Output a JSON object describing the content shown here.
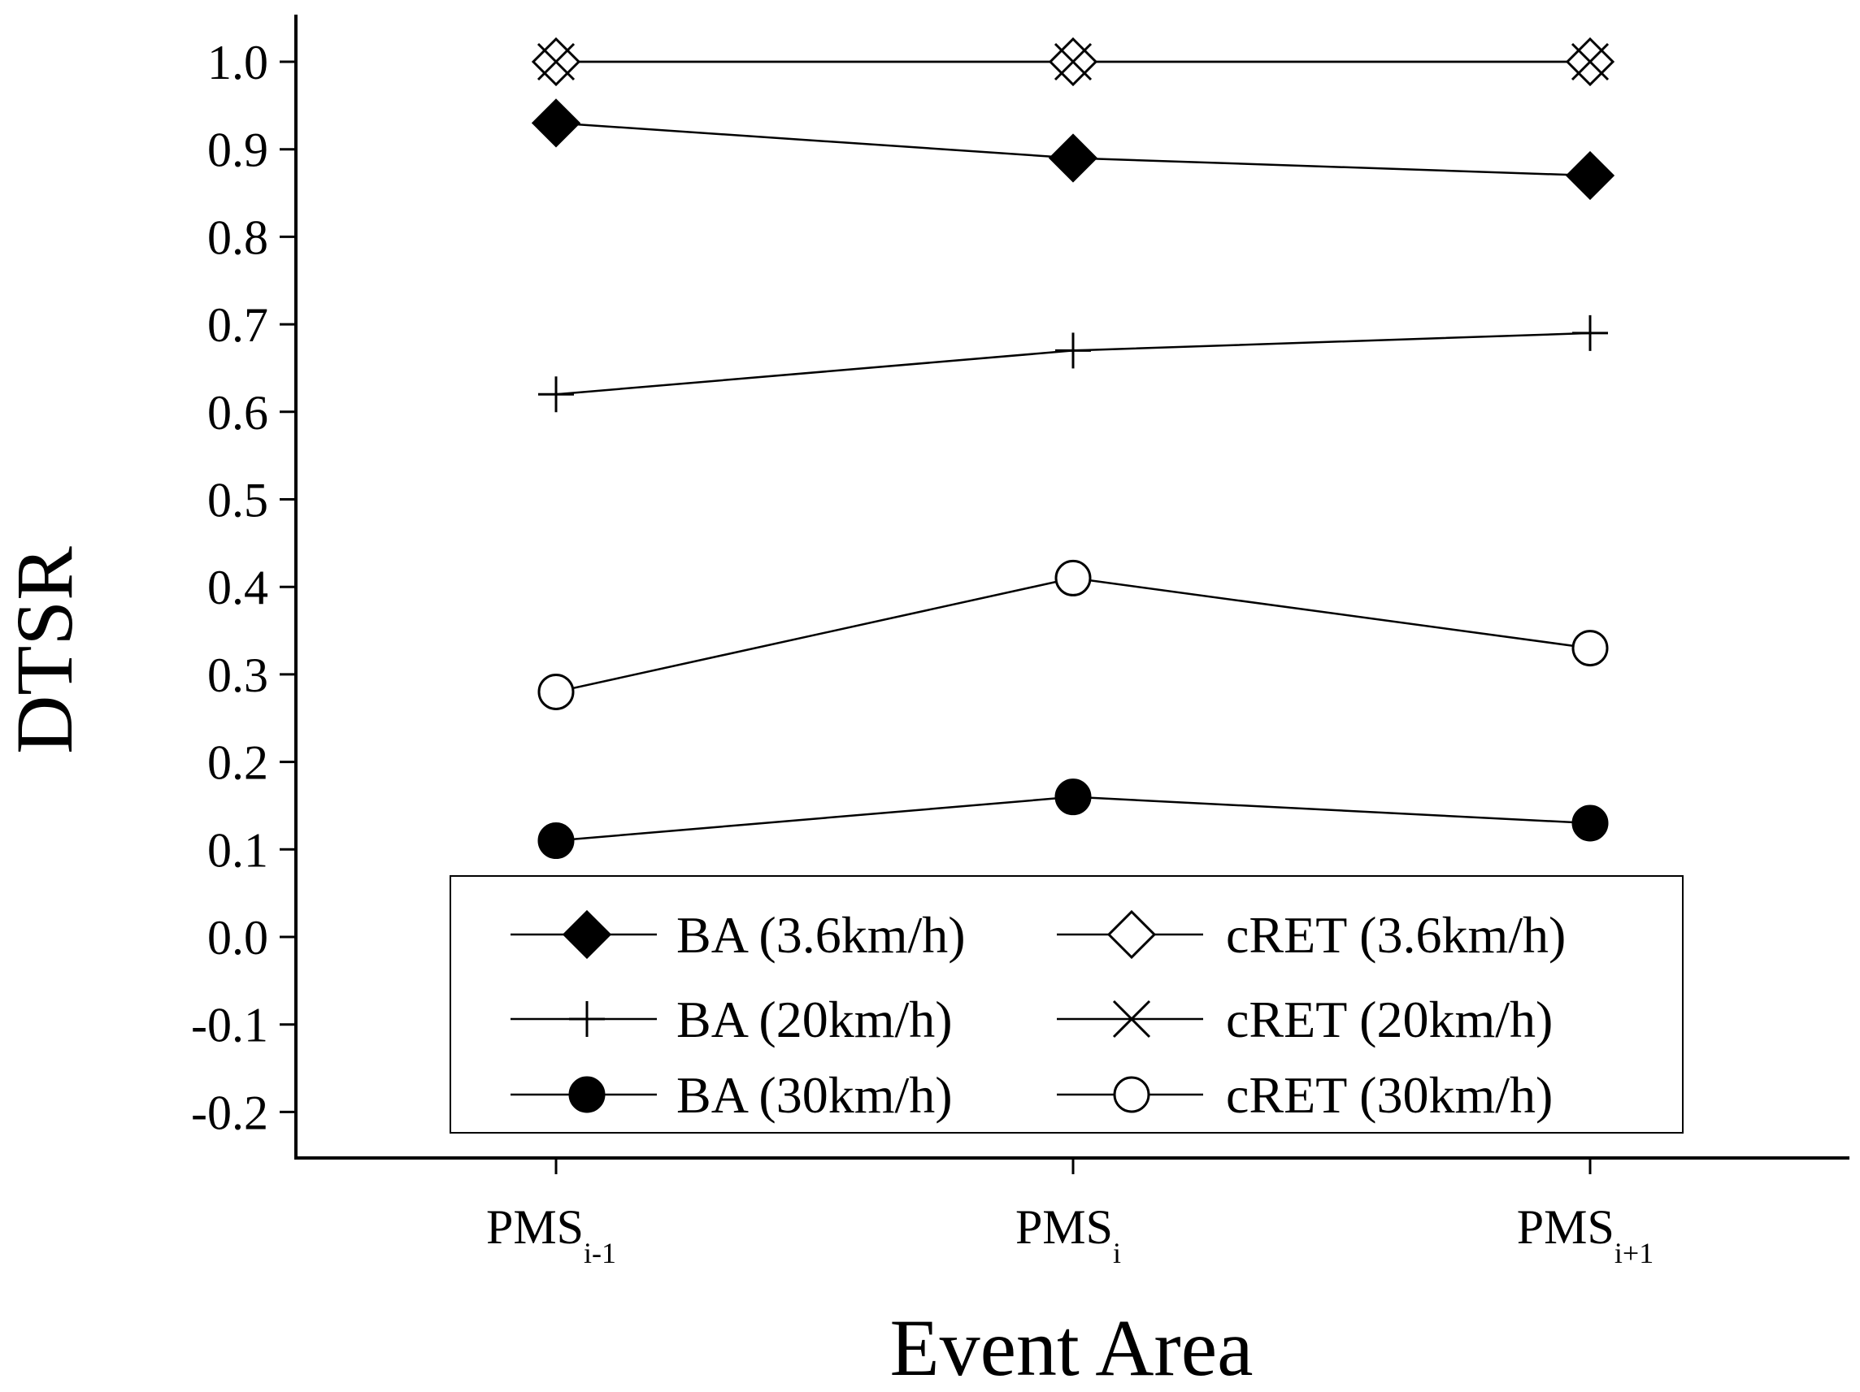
{
  "chart_data": {
    "type": "line",
    "title": "",
    "xlabel": "Event Area",
    "ylabel": "DTSR",
    "ylim": [
      -0.25,
      1.05
    ],
    "yticks": [
      "-0.2",
      "-0.1",
      "0.0",
      "0.1",
      "0.2",
      "0.3",
      "0.4",
      "0.5",
      "0.6",
      "0.7",
      "0.8",
      "0.9",
      "1.0"
    ],
    "categories": [
      {
        "main": "PMS",
        "sub": "i-1"
      },
      {
        "main": "PMS",
        "sub": "i"
      },
      {
        "main": "PMS",
        "sub": "i+1"
      }
    ],
    "legend_position": "bottom-inside",
    "series": [
      {
        "name": "BA (3.6km/h)",
        "marker": "diamond-filled",
        "values": [
          0.93,
          0.89,
          0.87
        ]
      },
      {
        "name": "cRET (3.6km/h)",
        "marker": "diamond-open",
        "values": [
          1.0,
          1.0,
          1.0
        ]
      },
      {
        "name": "BA (20km/h)",
        "marker": "plus",
        "values": [
          0.62,
          0.67,
          0.69
        ]
      },
      {
        "name": "cRET (20km/h)",
        "marker": "cross",
        "values": [
          1.0,
          1.0,
          1.0
        ]
      },
      {
        "name": "BA (30km/h)",
        "marker": "circle-filled",
        "values": [
          0.11,
          0.16,
          0.13
        ]
      },
      {
        "name": "cRET (30km/h)",
        "marker": "circle-open",
        "values": [
          0.28,
          0.41,
          0.33
        ]
      }
    ]
  }
}
